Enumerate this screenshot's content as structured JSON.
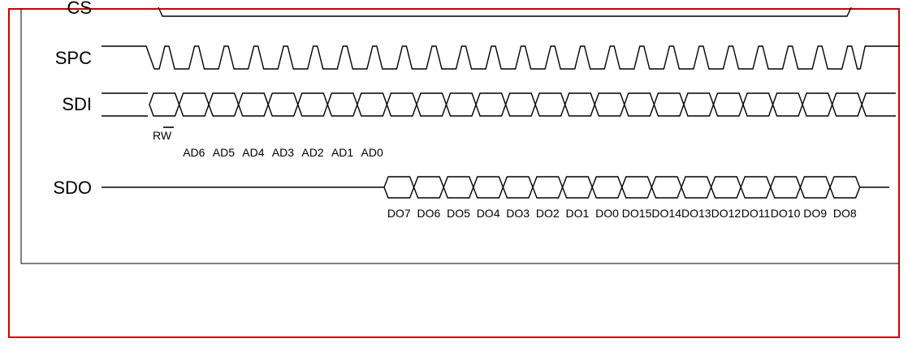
{
  "colors": {
    "frame": "#d00000",
    "ink": "#000000",
    "background": "#ffffff"
  },
  "signals": {
    "cs_label": "CS",
    "spc_label": "SPC",
    "sdi_label": "SDI",
    "sdo_label": "SDO"
  },
  "spc_cycles": 24,
  "sdi": {
    "rw_label": "RW",
    "address_bits": [
      "AD6",
      "AD5",
      "AD4",
      "AD3",
      "AD2",
      "AD1",
      "AD0"
    ],
    "cells": 24
  },
  "sdo": {
    "data_bits": [
      "DO7",
      "DO6",
      "DO5",
      "DO4",
      "DO3",
      "DO2",
      "DO1",
      "DO0",
      "DO15",
      "DO14",
      "DO13",
      "DO12",
      "DO11",
      "DO10",
      "DO9",
      "DO8"
    ]
  }
}
